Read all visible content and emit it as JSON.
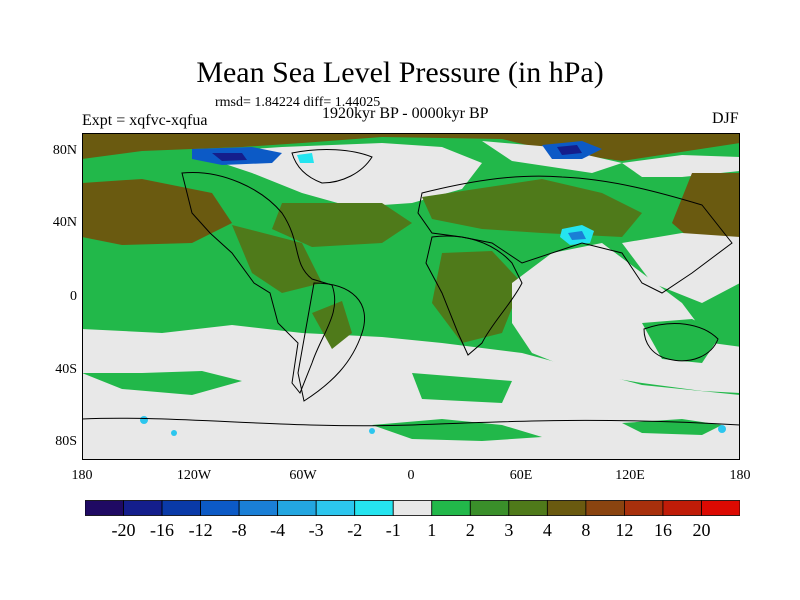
{
  "title": "Mean Sea Level Pressure (in hPa)",
  "stats": "rmsd= 1.84224 diff= 1.44025",
  "left_label": "Expt = xqfvc-xqfua",
  "center_label": "1920kyr BP - 0000kyr BP",
  "right_label": "DJF",
  "lat_labels": [
    "80N",
    "40N",
    "0",
    "40S",
    "80S"
  ],
  "lon_labels": [
    "180",
    "120W",
    "60W",
    "0",
    "60E",
    "120E",
    "180"
  ],
  "colorbar": {
    "colors": [
      "#1f0a63",
      "#141e8c",
      "#0a3aa8",
      "#0c5ac6",
      "#1a7fd6",
      "#23a6e0",
      "#2cc6ee",
      "#25e4ef",
      "#e8e8e8",
      "#22b84a",
      "#3a8f2a",
      "#4f7a1a",
      "#6a5a10",
      "#8a4410",
      "#a8300c",
      "#c01c08",
      "#dc0a02"
    ],
    "labels": [
      "-20",
      "-16",
      "-12",
      "-8",
      "-4",
      "-3",
      "-2",
      "-1",
      "1",
      "2",
      "3",
      "4",
      "8",
      "12",
      "16",
      "20"
    ]
  }
}
